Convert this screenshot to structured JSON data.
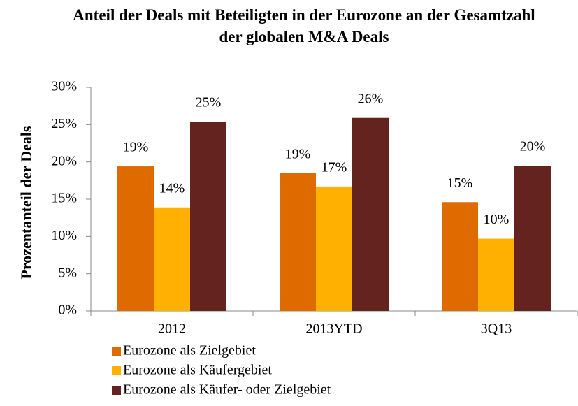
{
  "chart_data": {
    "type": "bar",
    "title": "Anteil der Deals mit Beteiligten in der Eurozone an der Gesamtzahl der globalen M&A Deals",
    "y_label": "Prozentanteil der Deals",
    "categories": [
      "2012",
      "2013YTD",
      "3Q13"
    ],
    "series": [
      {
        "name": "Eurozone als Zielgebiet",
        "color": "#DE6A00",
        "values": [
          19.4,
          18.5,
          14.6
        ],
        "value_labels": [
          "19%",
          "19%",
          "15%"
        ]
      },
      {
        "name": "Eurozone als Käufergebiet",
        "color": "#FFB000",
        "values": [
          13.9,
          16.7,
          9.7
        ],
        "value_labels": [
          "14%",
          "17%",
          "10%"
        ]
      },
      {
        "name": "Eurozone als Käufer- oder Zielgebiet",
        "color": "#65231F",
        "values": [
          25.4,
          25.9,
          19.5
        ],
        "value_labels": [
          "25%",
          "26%",
          "20%"
        ]
      }
    ],
    "ylim": [
      0,
      30
    ],
    "yticks": [
      {
        "value": 0,
        "label": "0%"
      },
      {
        "value": 5,
        "label": "5%"
      },
      {
        "value": 10,
        "label": "10%"
      },
      {
        "value": 15,
        "label": "15%"
      },
      {
        "value": 20,
        "label": "20%"
      },
      {
        "value": 25,
        "label": "25%"
      },
      {
        "value": 30,
        "label": "30%"
      }
    ],
    "grid": false,
    "legend": "bottom"
  }
}
